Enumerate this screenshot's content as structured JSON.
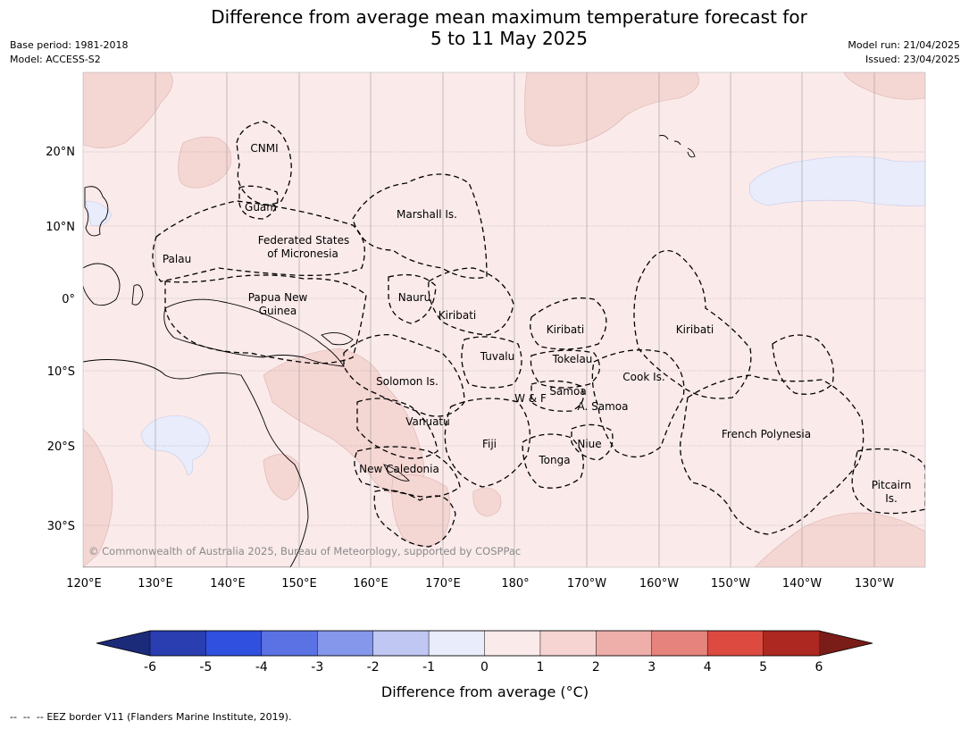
{
  "title_line1": "Difference from average mean maximum temperature forecast for",
  "title_line2": "5 to 11 May 2025",
  "meta_left": {
    "base_period": "Base period: 1981-2018",
    "model": "Model: ACCESS-S2"
  },
  "meta_right": {
    "model_run": "Model run: 21/04/2025",
    "issued": "Issued: 23/04/2025"
  },
  "lat_labels": [
    "20°N",
    "10°N",
    "0°",
    "10°S",
    "20°S",
    "30°S"
  ],
  "lon_labels": [
    "120°E",
    "130°E",
    "140°E",
    "150°E",
    "160°E",
    "170°E",
    "180°",
    "170°W",
    "160°W",
    "150°W",
    "140°W",
    "130°W"
  ],
  "region_labels": [
    "CNMI",
    "Guam",
    "Marshall Is.",
    "Federated States",
    "of Micronesia",
    "Palau",
    "Papua New",
    "Guinea",
    "Nauru",
    "Kiribati",
    "Kiribati",
    "Kiribati",
    "Tuvalu",
    "Tokelau",
    "Cook Is.",
    "Solomon Is.",
    "W & F",
    "Samoa",
    "A. Samoa",
    "Vanuatu",
    "Fiji",
    "Niue",
    "Tonga",
    "French Polynesia",
    "New Caledonia",
    "Pitcairn",
    "Is."
  ],
  "copyright": "© Commonwealth of Australia 2025, Bureau of Meteorology, supported by COSPPac",
  "colorbar": {
    "ticks": [
      "-6",
      "-5",
      "-4",
      "-3",
      "-2",
      "-1",
      "0",
      "1",
      "2",
      "3",
      "4",
      "5",
      "6"
    ],
    "label": "Difference from average (°C)",
    "colors": [
      "#2a3eb1",
      "#3050e0",
      "#5a72e3",
      "#8597ea",
      "#bfc7f2",
      "#e8ecfb",
      "#fbeaea",
      "#f5d4d2",
      "#eeaeaa",
      "#e6837d",
      "#dc4a40",
      "#ac2820"
    ],
    "low_extend_color": "#1c2a7a",
    "high_extend_color": "#7a1c18"
  },
  "legend_footer": "EEZ border V11 (Flanders Marine Institute, 2019)."
}
